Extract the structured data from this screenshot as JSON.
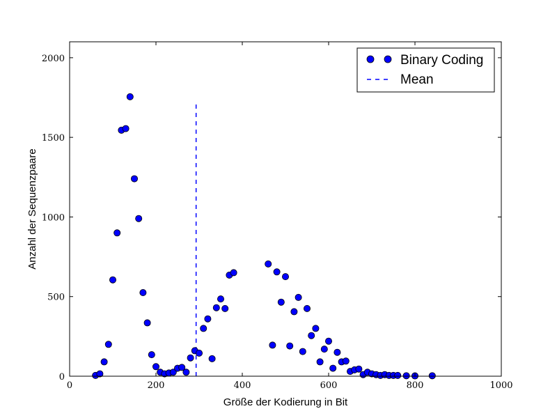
{
  "chart_data": {
    "type": "scatter",
    "xlabel": "Größe der Kodierung in Bit",
    "ylabel": "Anzahl der Sequenzpaare",
    "xlim": [
      0,
      1000
    ],
    "ylim": [
      0,
      2100
    ],
    "x_ticks": [
      "0",
      "200",
      "400",
      "600",
      "800",
      "1000"
    ],
    "y_ticks": [
      "0",
      "500",
      "1000",
      "1500",
      "2000"
    ],
    "grid": false,
    "legend_position": "top-right",
    "colors": {
      "points": "#0000ff",
      "mean_line": "#0000ff"
    },
    "series": [
      {
        "name": "Binary Coding",
        "type": "scatter",
        "points": [
          [
            60,
            5
          ],
          [
            70,
            15
          ],
          [
            80,
            90
          ],
          [
            90,
            200
          ],
          [
            100,
            605
          ],
          [
            110,
            900
          ],
          [
            120,
            1545
          ],
          [
            130,
            1555
          ],
          [
            140,
            1755
          ],
          [
            150,
            1240
          ],
          [
            160,
            990
          ],
          [
            170,
            525
          ],
          [
            180,
            335
          ],
          [
            190,
            135
          ],
          [
            200,
            60
          ],
          [
            210,
            25
          ],
          [
            220,
            15
          ],
          [
            230,
            20
          ],
          [
            240,
            25
          ],
          [
            250,
            50
          ],
          [
            260,
            55
          ],
          [
            270,
            25
          ],
          [
            280,
            115
          ],
          [
            290,
            160
          ],
          [
            300,
            145
          ],
          [
            310,
            300
          ],
          [
            320,
            360
          ],
          [
            330,
            110
          ],
          [
            340,
            430
          ],
          [
            350,
            485
          ],
          [
            360,
            425
          ],
          [
            370,
            635
          ],
          [
            380,
            650
          ],
          [
            460,
            705
          ],
          [
            470,
            195
          ],
          [
            480,
            655
          ],
          [
            490,
            465
          ],
          [
            500,
            625
          ],
          [
            510,
            190
          ],
          [
            520,
            405
          ],
          [
            530,
            495
          ],
          [
            540,
            155
          ],
          [
            550,
            425
          ],
          [
            560,
            255
          ],
          [
            570,
            300
          ],
          [
            580,
            90
          ],
          [
            590,
            170
          ],
          [
            600,
            220
          ],
          [
            610,
            50
          ],
          [
            620,
            150
          ],
          [
            630,
            90
          ],
          [
            640,
            95
          ],
          [
            650,
            30
          ],
          [
            660,
            40
          ],
          [
            670,
            45
          ],
          [
            680,
            10
          ],
          [
            690,
            25
          ],
          [
            700,
            15
          ],
          [
            710,
            10
          ],
          [
            720,
            5
          ],
          [
            730,
            10
          ],
          [
            740,
            5
          ],
          [
            750,
            5
          ],
          [
            760,
            5
          ],
          [
            780,
            3
          ],
          [
            800,
            2
          ],
          [
            840,
            3
          ]
        ]
      },
      {
        "name": "Mean",
        "type": "vline",
        "x": 293,
        "y_range": [
          0,
          1720
        ]
      }
    ]
  }
}
